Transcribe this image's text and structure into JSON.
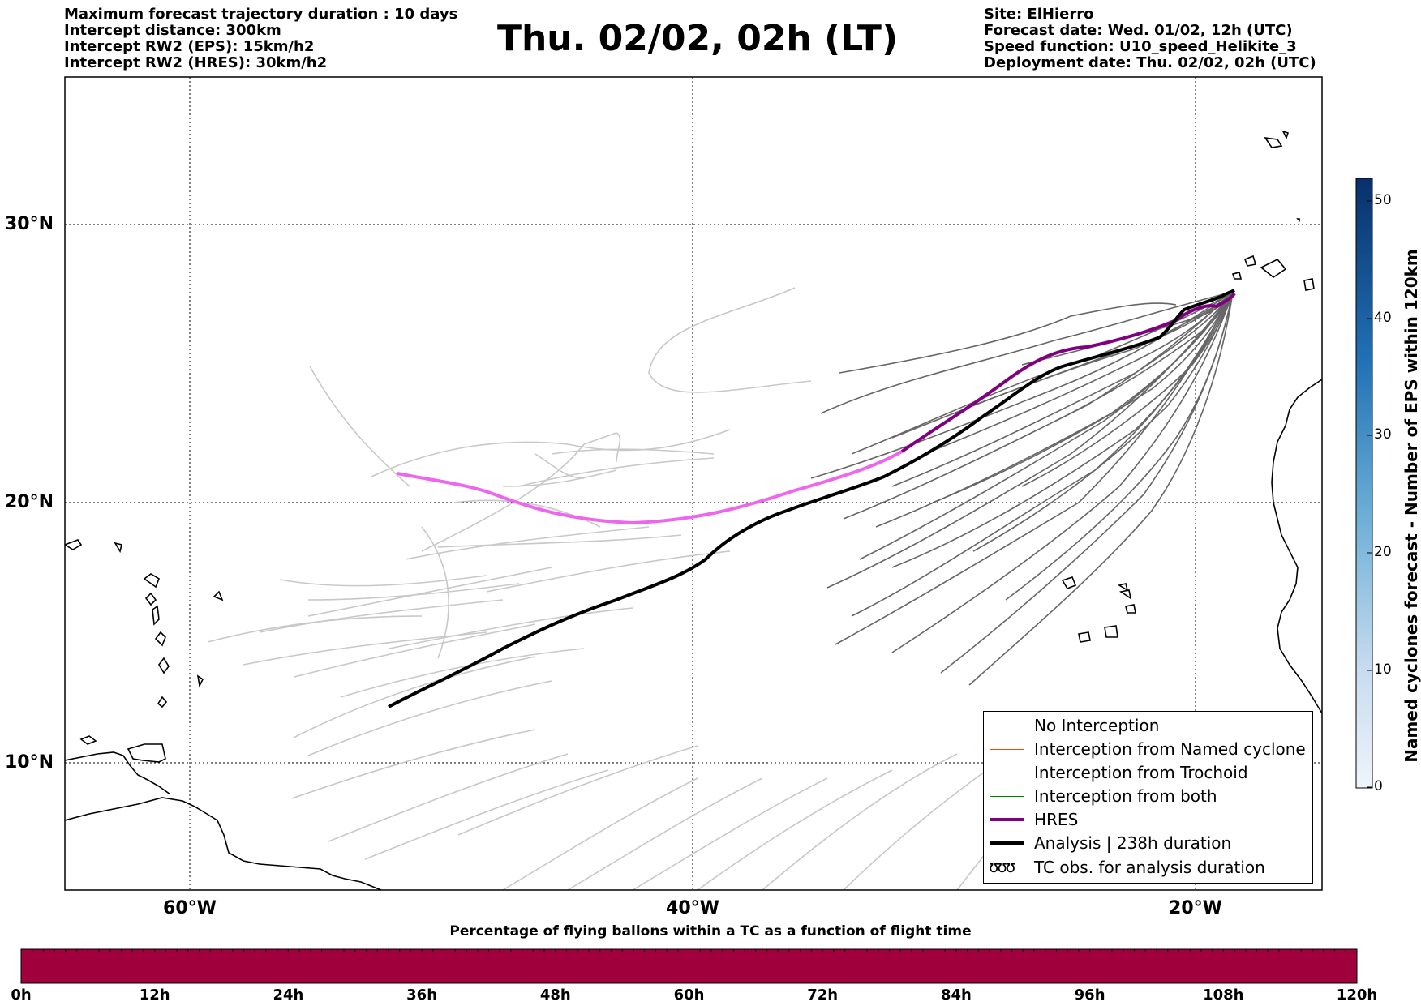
{
  "header_left": [
    "Maximum forecast trajectory duration : 10 days",
    "Intercept distance: 300km",
    "Intercept RW2 (EPS):  15km/h2",
    "Intercept RW2 (HRES): 30km/h2"
  ],
  "header_right": [
    "Site: ElHierro",
    "Forecast date: Wed. 01/02, 12h (UTC)",
    "Speed function: U10_speed_Helikite_3",
    "Deployment date: Thu. 02/02, 02h (UTC)"
  ],
  "title": "Thu. 02/02, 02h (LT)",
  "lat_labels": [
    "30°N",
    "20°N",
    "10°N"
  ],
  "lon_labels": [
    "60°W",
    "40°W",
    "20°W"
  ],
  "legend": {
    "no_interception": "No Interception",
    "named_cyclone": "Interception from Named cyclone",
    "trochoid": "Interception from Trochoid",
    "both": "Interception from both",
    "hres": "HRES",
    "analysis": "Analysis | 238h duration",
    "tc_obs_symbol": "ʊʊʊ",
    "tc_obs": "TC obs. for analysis duration"
  },
  "colorbar": {
    "label": "Named cyclones forecast - Number of EPS within 120km",
    "ticks": [
      "50",
      "40",
      "30",
      "20",
      "10",
      "0"
    ],
    "min": 0,
    "max": 52
  },
  "bottom_bar": {
    "title": "Percentage of flying ballons within a TC as a function of flight time",
    "ticks": [
      "0h",
      "12h",
      "24h",
      "36h",
      "48h",
      "60h",
      "72h",
      "84h",
      "96h",
      "108h",
      "120h"
    ],
    "percentage": 0
  },
  "colors": {
    "no_interception_dark": "#666666",
    "no_interception_light": "#c8c8c8",
    "named_cyclone": "#ff4500",
    "trochoid": "#808000",
    "both": "#008000",
    "hres": "#800080",
    "hres_light": "#ee66ee",
    "analysis": "#000000",
    "bottom_bar": "#a0003c"
  }
}
